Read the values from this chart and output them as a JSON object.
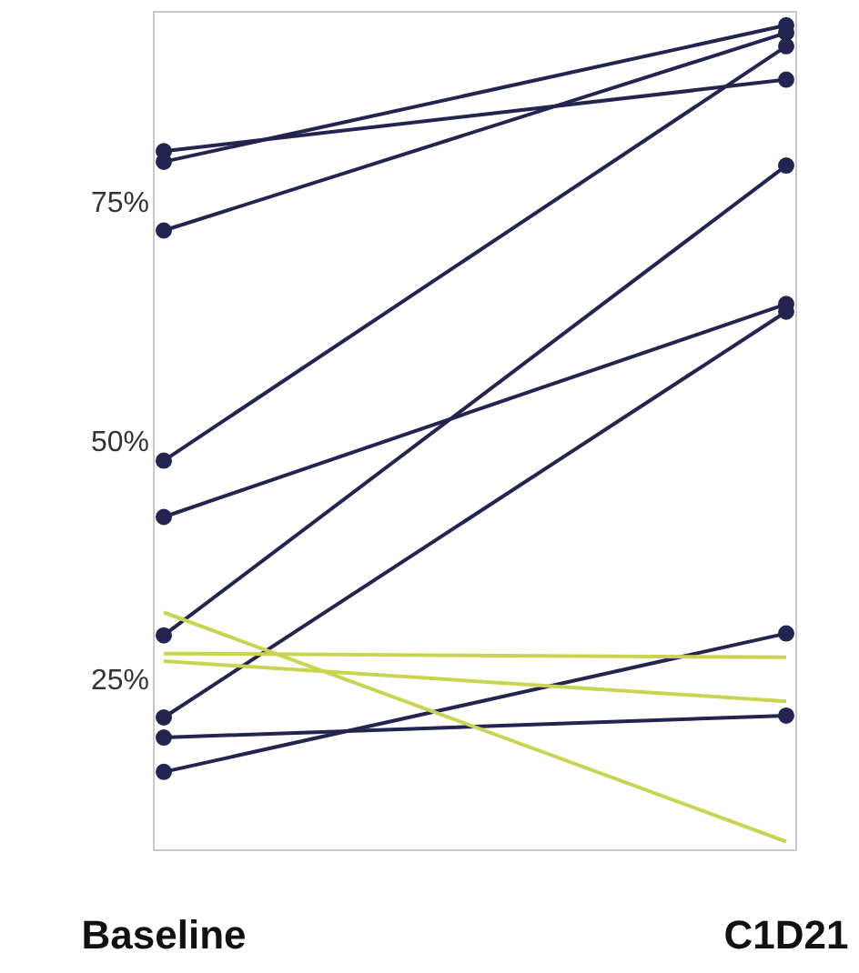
{
  "chart_data": {
    "type": "line",
    "categories": [
      "Baseline",
      "C1D21"
    ],
    "ylim": [
      7,
      95
    ],
    "yticks": [
      {
        "value": 25,
        "label": "25%"
      },
      {
        "value": 50,
        "label": "50%"
      },
      {
        "value": 75,
        "label": "75%"
      }
    ],
    "grid": false,
    "legend": false,
    "series": [
      {
        "color": "#23244f",
        "marker": "circle",
        "values": [
          79.2,
          93.5
        ]
      },
      {
        "color": "#23244f",
        "marker": "circle",
        "values": [
          80.3,
          87.8
        ]
      },
      {
        "color": "#23244f",
        "marker": "circle",
        "values": [
          72,
          92.7
        ]
      },
      {
        "color": "#23244f",
        "marker": "circle",
        "values": [
          47.9,
          91.3
        ]
      },
      {
        "color": "#23244f",
        "marker": "circle",
        "values": [
          42,
          64.3
        ]
      },
      {
        "color": "#23244f",
        "marker": "circle",
        "values": [
          29.6,
          78.8
        ]
      },
      {
        "color": "#23244f",
        "marker": "circle",
        "values": [
          21,
          63.5
        ]
      },
      {
        "color": "#23244f",
        "marker": "circle",
        "values": [
          18.9,
          21.2
        ]
      },
      {
        "color": "#23244f",
        "marker": "circle",
        "values": [
          15.3,
          29.8
        ]
      },
      {
        "color": "#c9d452",
        "marker": "none",
        "values": [
          32,
          8
        ]
      },
      {
        "color": "#c9d452",
        "marker": "none",
        "values": [
          27.7,
          27.3
        ]
      },
      {
        "color": "#c9d452",
        "marker": "none",
        "values": [
          26.9,
          22.7
        ]
      }
    ]
  }
}
